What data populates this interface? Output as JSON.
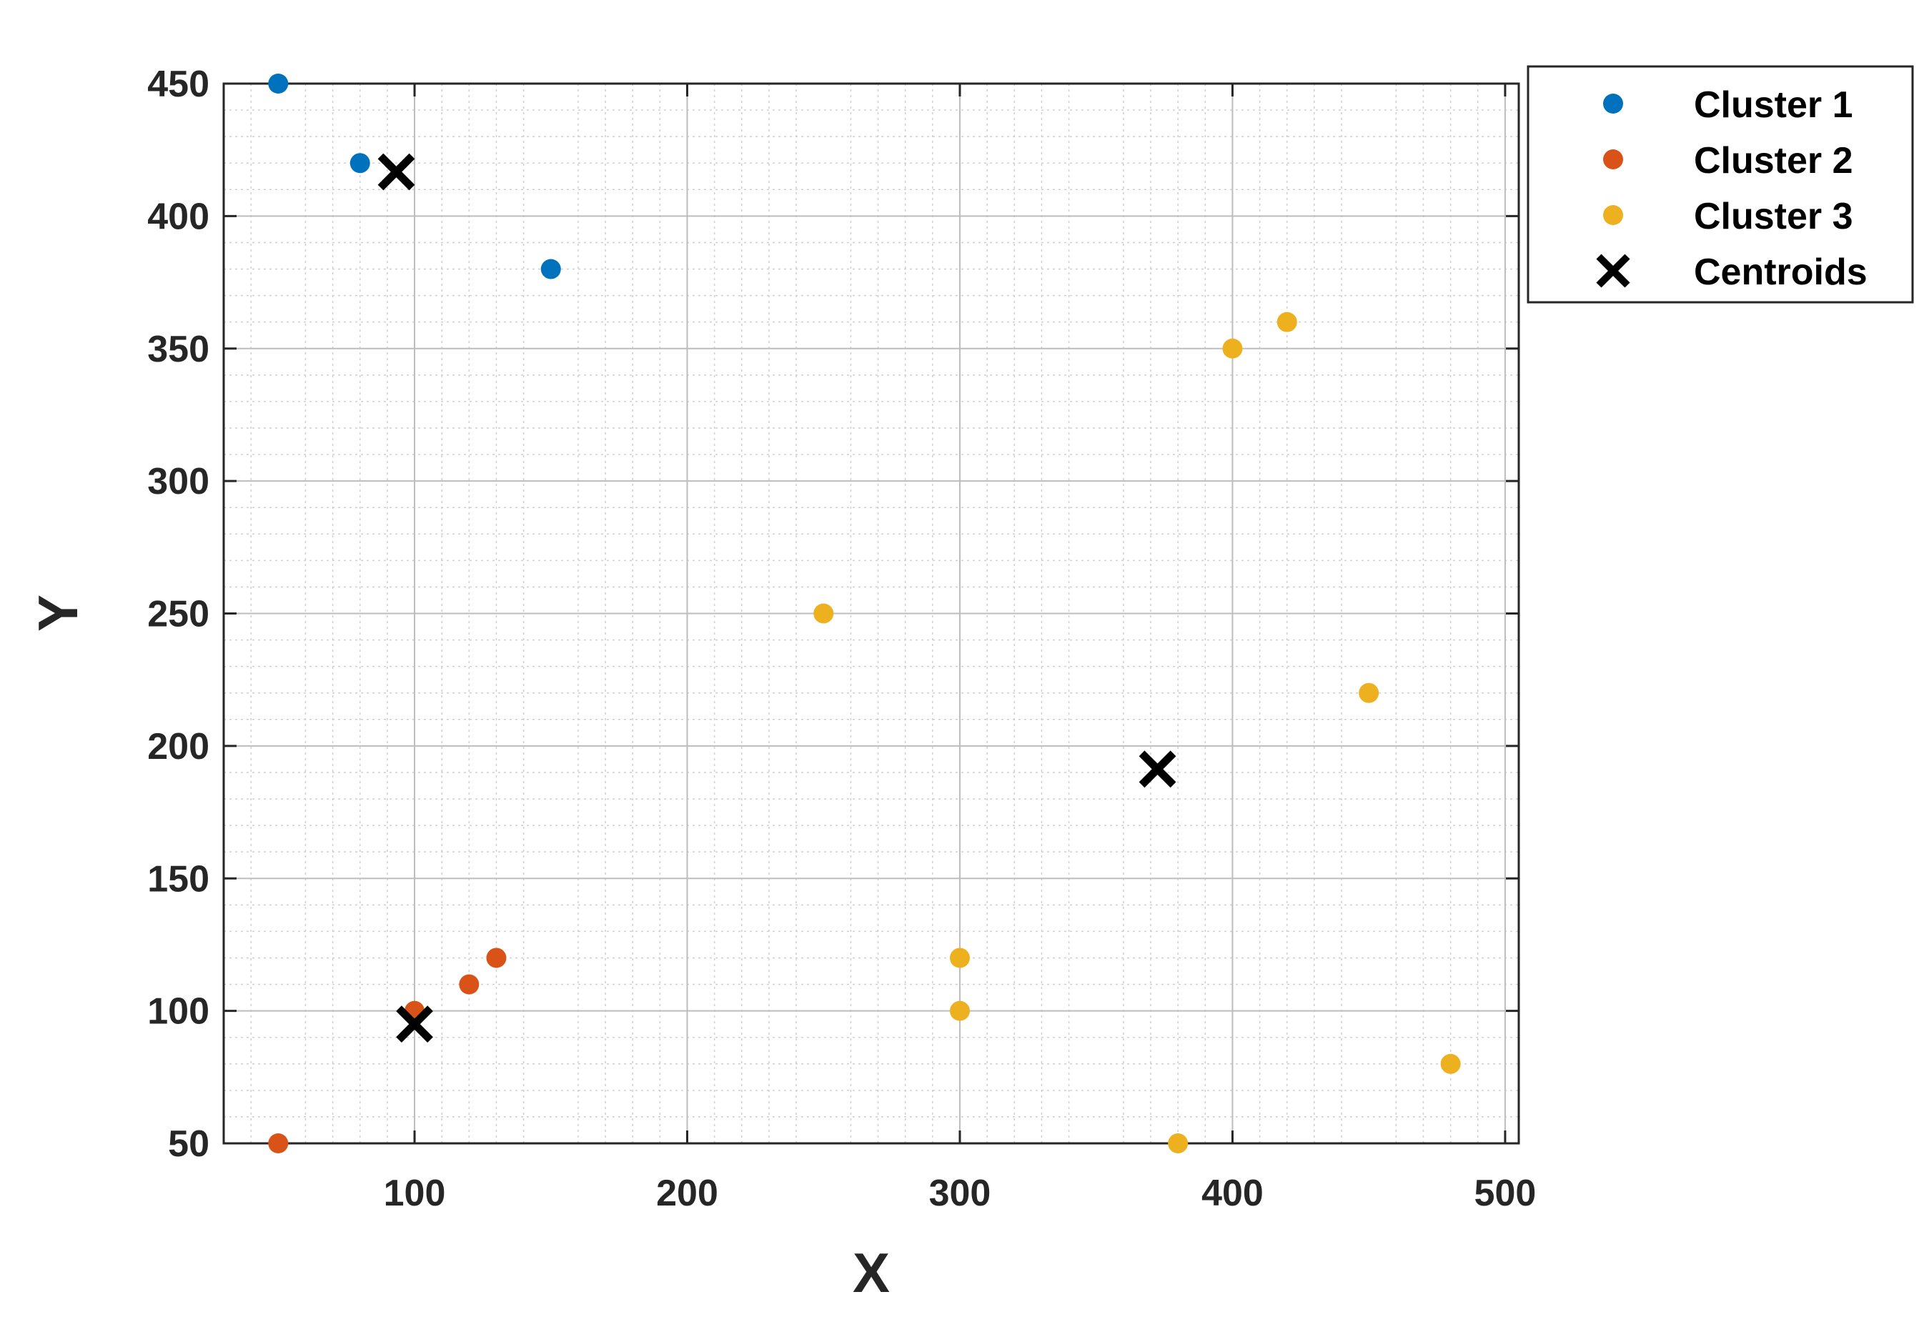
{
  "chart_data": {
    "type": "scatter",
    "title": "",
    "xlabel": "X",
    "ylabel": "Y",
    "xlim": [
      30,
      505
    ],
    "ylim": [
      50,
      450
    ],
    "x_ticks": [
      "100",
      "200",
      "300",
      "400",
      "500"
    ],
    "y_ticks": [
      "50",
      "100",
      "150",
      "200",
      "250",
      "300",
      "350",
      "400",
      "450"
    ],
    "grid": true,
    "minor_grid": true,
    "legend_position": "outside-top-right",
    "series": [
      {
        "name": "Cluster 1",
        "marker": "dot",
        "color": "#0072BD",
        "points": [
          [
            50,
            450
          ],
          [
            80,
            420
          ],
          [
            150,
            380
          ]
        ]
      },
      {
        "name": "Cluster 2",
        "marker": "dot",
        "color": "#D95319",
        "points": [
          [
            50,
            50
          ],
          [
            100,
            100
          ],
          [
            120,
            110
          ],
          [
            130,
            120
          ]
        ]
      },
      {
        "name": "Cluster 3",
        "marker": "dot",
        "color": "#EDB120",
        "points": [
          [
            250,
            250
          ],
          [
            300,
            120
          ],
          [
            300,
            100
          ],
          [
            380,
            50
          ],
          [
            400,
            350
          ],
          [
            420,
            360
          ],
          [
            450,
            220
          ],
          [
            480,
            80
          ]
        ]
      },
      {
        "name": "Centroids",
        "marker": "x",
        "color": "#000000",
        "points": [
          [
            93.3,
            416.7
          ],
          [
            100,
            95
          ],
          [
            372.5,
            191.25
          ]
        ]
      }
    ]
  }
}
